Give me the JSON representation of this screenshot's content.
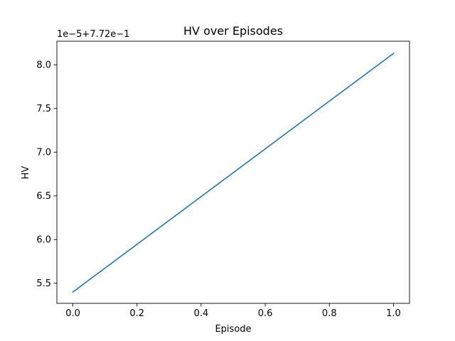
{
  "chart_data": {
    "type": "line",
    "title": "HV over Episodes",
    "xlabel": "Episode",
    "ylabel": "HV",
    "y_offset_label": "1e−5+7.72e−1",
    "x": [
      0,
      1
    ],
    "series": [
      {
        "values": [
          5.4,
          8.13
        ],
        "color": "#1f77b4"
      }
    ],
    "xlim": [
      -0.05,
      1.05
    ],
    "ylim": [
      5.27,
      8.27
    ],
    "xticks": [
      {
        "value": 0.0,
        "label": "0.0"
      },
      {
        "value": 0.2,
        "label": "0.2"
      },
      {
        "value": 0.4,
        "label": "0.4"
      },
      {
        "value": 0.6,
        "label": "0.6"
      },
      {
        "value": 0.8,
        "label": "0.8"
      },
      {
        "value": 1.0,
        "label": "1.0"
      }
    ],
    "yticks": [
      {
        "value": 5.5,
        "label": "5.5"
      },
      {
        "value": 6.0,
        "label": "6.0"
      },
      {
        "value": 6.5,
        "label": "6.5"
      },
      {
        "value": 7.0,
        "label": "7.0"
      },
      {
        "value": 7.5,
        "label": "7.5"
      },
      {
        "value": 8.0,
        "label": "8.0"
      }
    ],
    "grid": false,
    "legend": "none"
  }
}
